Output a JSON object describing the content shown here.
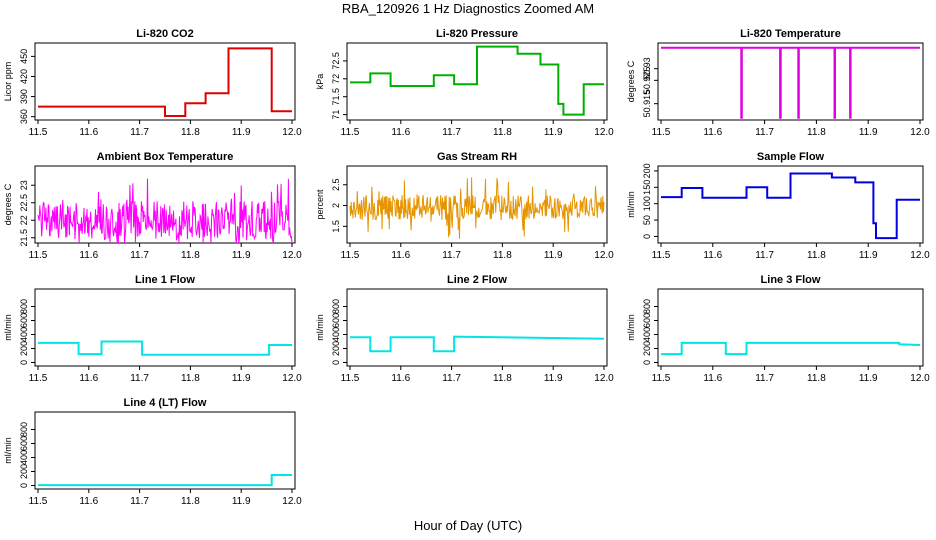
{
  "figure": {
    "title": "RBA_120926  1 Hz Diagnostics Zoomed AM",
    "xlabel": "Hour of Day (UTC)"
  },
  "chart_data": [
    {
      "type": "line",
      "title": "Li-820 CO2",
      "ylabel": "Licor ppm",
      "color": "#e00000",
      "xlim": [
        11.5,
        12.0
      ],
      "ylim": [
        355,
        470
      ],
      "xticks": [
        11.5,
        11.6,
        11.7,
        11.8,
        11.9,
        12.0
      ],
      "yticks": [
        360,
        390,
        420,
        450
      ],
      "series": [
        {
          "name": "CO2",
          "x": [
            11.5,
            11.75,
            11.75,
            11.79,
            11.79,
            11.83,
            11.83,
            11.875,
            11.875,
            11.96,
            11.96,
            12.0
          ],
          "y": [
            375,
            375,
            361,
            361,
            380,
            380,
            395,
            395,
            462,
            462,
            368,
            368
          ]
        }
      ]
    },
    {
      "type": "line",
      "title": "Li-820 Pressure",
      "ylabel": "kPa",
      "color": "#00b000",
      "xlim": [
        11.5,
        12.0
      ],
      "ylim": [
        70.85,
        73.0
      ],
      "xticks": [
        11.5,
        11.6,
        11.7,
        11.8,
        11.9,
        12.0
      ],
      "yticks": [
        71.0,
        71.5,
        72.0,
        72.5
      ],
      "series": [
        {
          "name": "Pressure",
          "x": [
            11.5,
            11.54,
            11.54,
            11.58,
            11.58,
            11.665,
            11.665,
            11.705,
            11.705,
            11.75,
            11.75,
            11.83,
            11.83,
            11.875,
            11.875,
            11.91,
            11.91,
            11.92,
            11.92,
            11.96,
            11.96,
            12.0
          ],
          "y": [
            71.9,
            71.9,
            72.15,
            72.15,
            71.8,
            71.8,
            72.1,
            72.1,
            71.85,
            71.85,
            72.9,
            72.9,
            72.7,
            72.7,
            72.4,
            72.4,
            71.3,
            71.3,
            71.0,
            71.0,
            71.85,
            71.85
          ]
        }
      ]
    },
    {
      "type": "line",
      "title": "Li-820 Temperature",
      "ylabel": "degrees C",
      "color": "#e000e0",
      "xlim": [
        11.5,
        12.0
      ],
      "ylim": [
        50.908,
        50.941
      ],
      "xticks": [
        11.5,
        11.6,
        11.7,
        11.8,
        11.9,
        12.0
      ],
      "yticks": [
        50.915,
        50.925,
        50.93
      ],
      "series": [
        {
          "name": "Temperature",
          "x": [
            11.5,
            11.655,
            11.655,
            11.656,
            11.656,
            11.73,
            11.73,
            11.731,
            11.731,
            11.765,
            11.765,
            11.766,
            11.766,
            11.835,
            11.835,
            11.836,
            11.836,
            11.865,
            11.865,
            11.866,
            11.866,
            12.0
          ],
          "y": [
            50.939,
            50.939,
            50.909,
            50.909,
            50.939,
            50.939,
            50.909,
            50.909,
            50.939,
            50.939,
            50.909,
            50.909,
            50.939,
            50.939,
            50.909,
            50.909,
            50.939,
            50.939,
            50.909,
            50.909,
            50.939,
            50.939
          ]
        }
      ]
    },
    {
      "type": "line",
      "title": "Ambient Box Temperature",
      "ylabel": "degrees C",
      "color": "#ff00ff",
      "xlim": [
        11.5,
        12.0
      ],
      "ylim": [
        21.35,
        23.55
      ],
      "xticks": [
        11.5,
        11.6,
        11.7,
        11.8,
        11.9,
        12.0
      ],
      "yticks": [
        21.5,
        22.0,
        22.5,
        23.0
      ],
      "series": [
        {
          "name": "Ambient",
          "noise": true,
          "center": 22.0,
          "amplitude": 0.55,
          "spike": 1.2
        }
      ]
    },
    {
      "type": "line",
      "title": "Gas Stream RH",
      "ylabel": "percent",
      "color": "#e69500",
      "xlim": [
        11.5,
        12.0
      ],
      "ylim": [
        1.1,
        2.95
      ],
      "xticks": [
        11.5,
        11.6,
        11.7,
        11.8,
        11.9,
        12.0
      ],
      "yticks": [
        1.5,
        2.0,
        2.5
      ],
      "series": [
        {
          "name": "RH",
          "noise": true,
          "center": 1.95,
          "amplitude": 0.3,
          "spike": 0.75
        }
      ]
    },
    {
      "type": "line",
      "title": "Sample Flow",
      "ylabel": "ml/min",
      "color": "#0000e0",
      "xlim": [
        11.5,
        12.0
      ],
      "ylim": [
        -20,
        215
      ],
      "xticks": [
        11.5,
        11.6,
        11.7,
        11.8,
        11.9,
        12.0
      ],
      "yticks": [
        0,
        50,
        100,
        150,
        200
      ],
      "series": [
        {
          "name": "Sample",
          "x": [
            11.5,
            11.54,
            11.54,
            11.58,
            11.58,
            11.665,
            11.665,
            11.705,
            11.705,
            11.75,
            11.75,
            11.83,
            11.83,
            11.875,
            11.875,
            11.91,
            11.91,
            11.915,
            11.915,
            11.955,
            11.955,
            12.0
          ],
          "y": [
            120,
            120,
            148,
            148,
            118,
            118,
            150,
            150,
            118,
            118,
            192,
            192,
            180,
            180,
            165,
            165,
            40,
            40,
            -5,
            -5,
            112,
            112
          ]
        }
      ]
    },
    {
      "type": "line",
      "title": "Line 1 Flow",
      "ylabel": "ml/min",
      "color": "#00e5e5",
      "xlim": [
        11.5,
        12.0
      ],
      "ylim": [
        -50,
        1050
      ],
      "xticks": [
        11.5,
        11.6,
        11.7,
        11.8,
        11.9,
        12.0
      ],
      "yticks": [
        0,
        200,
        400,
        600,
        800
      ],
      "series": [
        {
          "name": "Line 1",
          "x": [
            11.5,
            11.58,
            11.58,
            11.625,
            11.625,
            11.705,
            11.705,
            11.955,
            11.955,
            12.0
          ],
          "y": [
            280,
            280,
            120,
            120,
            300,
            300,
            110,
            110,
            250,
            250
          ]
        }
      ]
    },
    {
      "type": "line",
      "title": "Line 2 Flow",
      "ylabel": "ml/min",
      "color": "#00e5e5",
      "xlim": [
        11.5,
        12.0
      ],
      "ylim": [
        -50,
        1050
      ],
      "xticks": [
        11.5,
        11.6,
        11.7,
        11.8,
        11.9,
        12.0
      ],
      "yticks": [
        0,
        200,
        400,
        600,
        800
      ],
      "series": [
        {
          "name": "Line 2",
          "x": [
            11.5,
            11.54,
            11.54,
            11.58,
            11.58,
            11.665,
            11.665,
            11.705,
            11.705,
            12.0
          ],
          "y": [
            360,
            360,
            160,
            160,
            360,
            360,
            160,
            160,
            370,
            340
          ]
        }
      ]
    },
    {
      "type": "line",
      "title": "Line 3 Flow",
      "ylabel": "ml/min",
      "color": "#00e5e5",
      "xlim": [
        11.5,
        12.0
      ],
      "ylim": [
        -50,
        1050
      ],
      "xticks": [
        11.5,
        11.6,
        11.7,
        11.8,
        11.9,
        12.0
      ],
      "yticks": [
        0,
        200,
        400,
        600,
        800
      ],
      "series": [
        {
          "name": "Line 3",
          "x": [
            11.5,
            11.54,
            11.54,
            11.625,
            11.625,
            11.665,
            11.665,
            11.96,
            11.96,
            12.0
          ],
          "y": [
            120,
            120,
            280,
            280,
            120,
            120,
            280,
            280,
            260,
            250
          ]
        }
      ]
    },
    {
      "type": "line",
      "title": "Line 4 (LT) Flow",
      "ylabel": "ml/min",
      "color": "#00e5e5",
      "xlim": [
        11.5,
        12.0
      ],
      "ylim": [
        -50,
        1050
      ],
      "xticks": [
        11.5,
        11.6,
        11.7,
        11.8,
        11.9,
        12.0
      ],
      "yticks": [
        0,
        200,
        400,
        600,
        800
      ],
      "series": [
        {
          "name": "Line 4",
          "x": [
            11.5,
            11.96,
            11.96,
            12.0
          ],
          "y": [
            5,
            5,
            150,
            150
          ]
        }
      ]
    }
  ]
}
